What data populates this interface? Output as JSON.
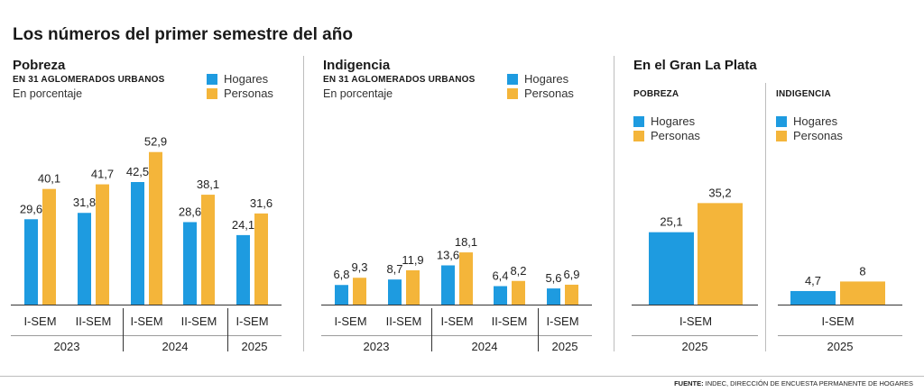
{
  "title": "Los números del primer semestre del año",
  "colors": {
    "hogares": "#1e9be0",
    "personas": "#f4b53a"
  },
  "legend": {
    "hogares": "Hogares",
    "personas": "Personas"
  },
  "panels": {
    "pobreza": {
      "title": "Pobreza",
      "subtitle": "EN 31 AGLOMERADOS URBANOS",
      "unit": "En porcentaje"
    },
    "indigencia": {
      "title": "Indigencia",
      "subtitle": "EN 31 AGLOMERADOS URBANOS",
      "unit": "En porcentaje"
    },
    "laplata": {
      "title": "En el Gran La Plata",
      "pobreza_label": "POBREZA",
      "indigencia_label": "INDIGENCIA"
    }
  },
  "footer": {
    "label": "FUENTE:",
    "text": " INDEC, DIRECCIÓN DE ENCUESTA PERMANENTE DE HOGARES"
  },
  "chart_data": [
    {
      "id": "pobreza",
      "type": "bar",
      "title": "Pobreza",
      "ylim": [
        0,
        55
      ],
      "categories": [
        "I-SEM",
        "II-SEM",
        "I-SEM",
        "II-SEM",
        "I-SEM"
      ],
      "years": [
        {
          "label": "2023",
          "span": 2
        },
        {
          "label": "2024",
          "span": 2
        },
        {
          "label": "2025",
          "span": 1
        }
      ],
      "series": [
        {
          "name": "Hogares",
          "values": [
            29.6,
            31.8,
            42.5,
            28.6,
            24.1
          ],
          "labels": [
            "29,6",
            "31,8",
            "42,5",
            "28,6",
            "24,1"
          ]
        },
        {
          "name": "Personas",
          "values": [
            40.1,
            41.7,
            52.9,
            38.1,
            31.6
          ],
          "labels": [
            "40,1",
            "41,7",
            "52,9",
            "38,1",
            "31,6"
          ]
        }
      ]
    },
    {
      "id": "indigencia",
      "type": "bar",
      "title": "Indigencia",
      "ylim": [
        0,
        55
      ],
      "categories": [
        "I-SEM",
        "II-SEM",
        "I-SEM",
        "II-SEM",
        "I-SEM"
      ],
      "years": [
        {
          "label": "2023",
          "span": 2
        },
        {
          "label": "2024",
          "span": 2
        },
        {
          "label": "2025",
          "span": 1
        }
      ],
      "series": [
        {
          "name": "Hogares",
          "values": [
            6.8,
            8.7,
            13.6,
            6.4,
            5.6
          ],
          "labels": [
            "6,8",
            "8,7",
            "13,6",
            "6,4",
            "5,6"
          ]
        },
        {
          "name": "Personas",
          "values": [
            9.3,
            11.9,
            18.1,
            8.2,
            6.9
          ],
          "labels": [
            "9,3",
            "11,9",
            "18,1",
            "8,2",
            "6,9"
          ]
        }
      ]
    },
    {
      "id": "laplata-pobreza",
      "type": "bar",
      "title": "POBREZA",
      "ylim": [
        0,
        55
      ],
      "categories": [
        "I-SEM"
      ],
      "years": [
        {
          "label": "2025",
          "span": 1
        }
      ],
      "series": [
        {
          "name": "Hogares",
          "values": [
            25.1
          ],
          "labels": [
            "25,1"
          ]
        },
        {
          "name": "Personas",
          "values": [
            35.2
          ],
          "labels": [
            "35,2"
          ]
        }
      ]
    },
    {
      "id": "laplata-indigencia",
      "type": "bar",
      "title": "INDIGENCIA",
      "ylim": [
        0,
        55
      ],
      "categories": [
        "I-SEM"
      ],
      "years": [
        {
          "label": "2025",
          "span": 1
        }
      ],
      "series": [
        {
          "name": "Hogares",
          "values": [
            4.7
          ],
          "labels": [
            "4,7"
          ]
        },
        {
          "name": "Personas",
          "values": [
            8
          ],
          "labels": [
            "8"
          ]
        }
      ]
    }
  ]
}
